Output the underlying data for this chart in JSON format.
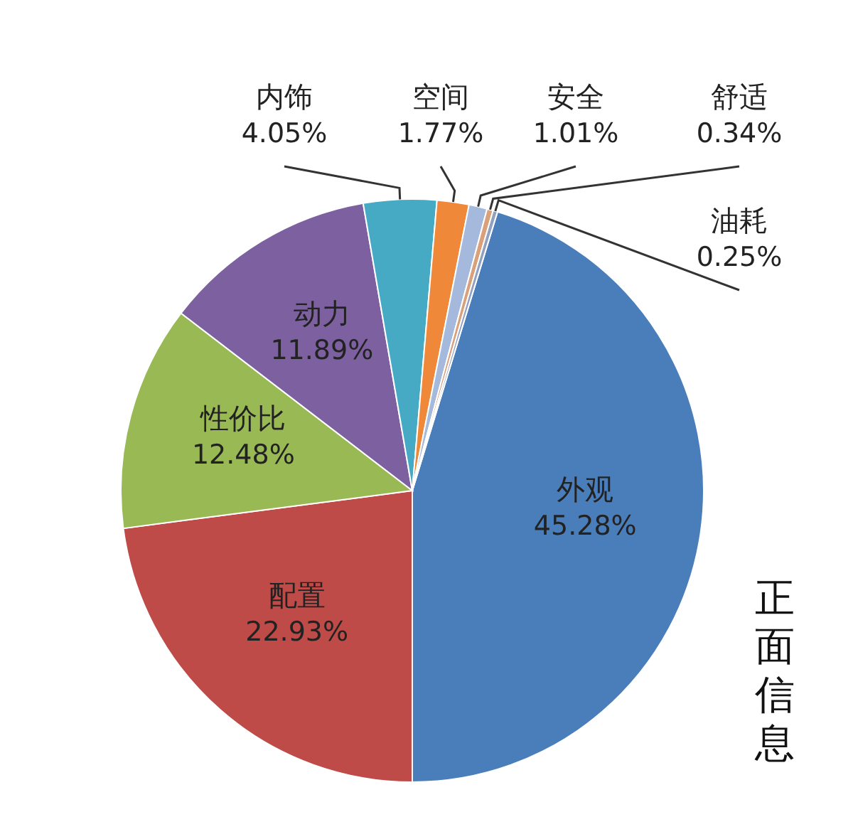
{
  "chart_data": {
    "type": "pie",
    "categories": [
      "外观",
      "配置",
      "性价比",
      "动力",
      "内饰",
      "空间",
      "安全",
      "舒适",
      "油耗"
    ],
    "values": [
      45.28,
      22.93,
      12.48,
      11.89,
      4.05,
      1.77,
      1.01,
      0.34,
      0.25
    ],
    "value_labels": [
      "45.28%",
      "22.93%",
      "12.48%",
      "11.89%",
      "4.05%",
      "1.77%",
      "1.01%",
      "0.34%",
      "0.25%"
    ],
    "colors": [
      "#4a7ebb",
      "#be4b48",
      "#98b954",
      "#7d60a0",
      "#46aac5",
      "#f0883a",
      "#a5b9dd",
      "#d9a07a",
      "#8fa0c0"
    ],
    "annotations": [
      "正面信息"
    ]
  }
}
